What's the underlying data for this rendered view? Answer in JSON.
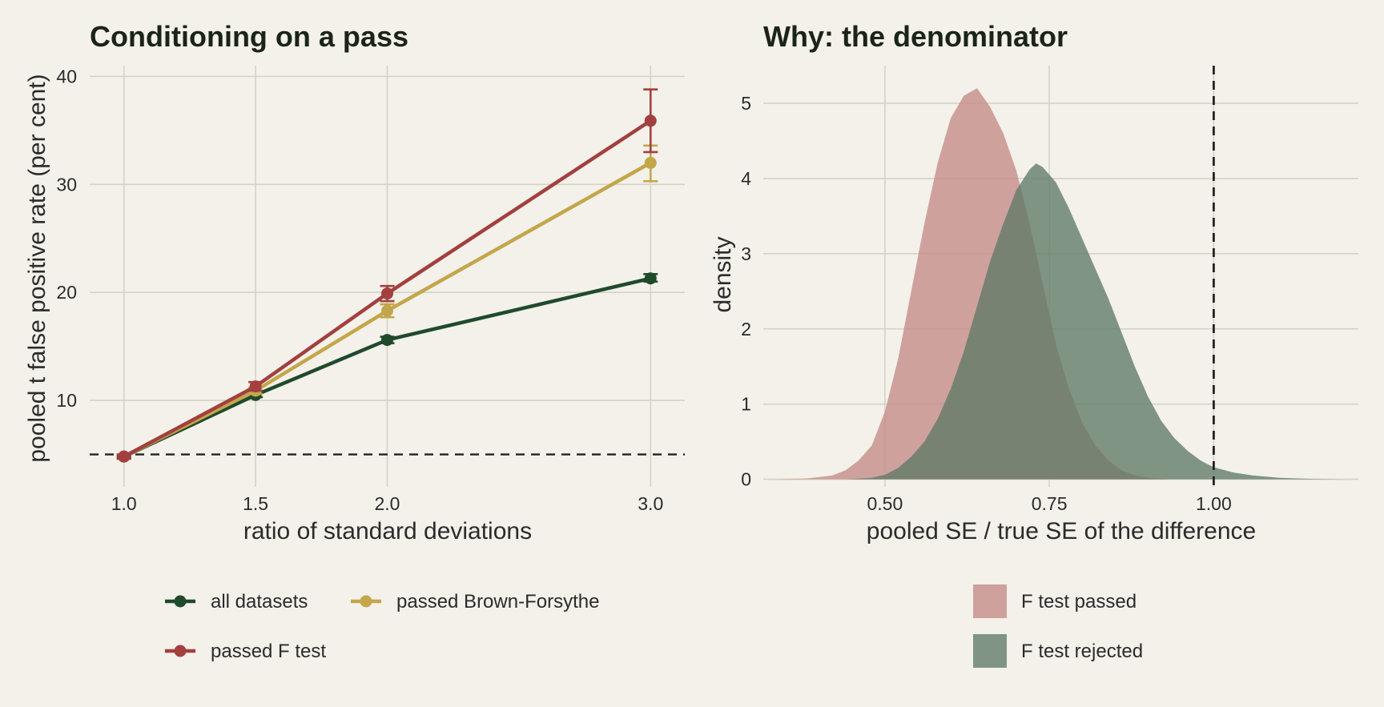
{
  "chart_data": [
    {
      "type": "line",
      "title": "Conditioning on a pass",
      "xlabel": "ratio of standard deviations",
      "ylabel": "pooled t false positive rate (per cent)",
      "x": [
        1.0,
        1.5,
        2.0,
        3.0
      ],
      "x_tick_labels": [
        "1.0",
        "1.5",
        "2.0",
        "3.0"
      ],
      "xlim": [
        0.87,
        3.13
      ],
      "y_ticks": [
        10,
        20,
        30,
        40
      ],
      "y_tick_labels": [
        "10",
        "20",
        "30",
        "40"
      ],
      "ylim": [
        2.0,
        41.0
      ],
      "reference_line": 5,
      "grid": true,
      "legend_position": "bottom",
      "series": [
        {
          "name": "all datasets",
          "color": "#1f4a2c",
          "values": [
            4.8,
            10.5,
            15.6,
            21.3
          ],
          "lower": [
            4.7,
            10.3,
            15.3,
            21.0
          ],
          "upper": [
            4.9,
            10.7,
            15.9,
            21.7
          ]
        },
        {
          "name": "passed F test",
          "color": "#a33f3f",
          "values": [
            4.8,
            11.3,
            19.9,
            35.9
          ],
          "lower": [
            4.6,
            10.9,
            19.2,
            33.0
          ],
          "upper": [
            5.0,
            11.7,
            20.6,
            38.8
          ]
        },
        {
          "name": "passed Brown-Forsythe",
          "color": "#c4a64a",
          "values": [
            4.8,
            10.9,
            18.3,
            32.0
          ],
          "lower": [
            4.6,
            10.6,
            17.7,
            30.3
          ],
          "upper": [
            5.0,
            11.2,
            18.9,
            33.6
          ]
        }
      ]
    },
    {
      "type": "area",
      "title": "Why: the denominator",
      "xlabel": "pooled SE / true SE of the difference",
      "ylabel": "density",
      "x_ticks": [
        0.5,
        0.75,
        1.0
      ],
      "x_tick_labels": [
        "0.50",
        "0.75",
        "1.00"
      ],
      "xlim": [
        0.315,
        1.22
      ],
      "y_ticks": [
        0,
        1,
        2,
        3,
        4,
        5
      ],
      "y_tick_labels": [
        "0",
        "1",
        "2",
        "3",
        "4",
        "5"
      ],
      "ylim": [
        -0.1,
        5.5
      ],
      "reference_line": 1.0,
      "grid": true,
      "legend_position": "bottom",
      "series": [
        {
          "name": "F test passed",
          "color": "#c48a87",
          "x": [
            0.33,
            0.38,
            0.42,
            0.44,
            0.46,
            0.48,
            0.5,
            0.52,
            0.54,
            0.56,
            0.58,
            0.6,
            0.62,
            0.64,
            0.66,
            0.68,
            0.7,
            0.72,
            0.74,
            0.76,
            0.78,
            0.8,
            0.82,
            0.84,
            0.86,
            0.88,
            0.9,
            0.93
          ],
          "values": [
            0.0,
            0.01,
            0.05,
            0.12,
            0.25,
            0.45,
            0.9,
            1.6,
            2.5,
            3.4,
            4.2,
            4.8,
            5.1,
            5.2,
            4.95,
            4.6,
            4.1,
            3.4,
            2.6,
            1.8,
            1.2,
            0.75,
            0.45,
            0.25,
            0.12,
            0.05,
            0.02,
            0.0
          ]
        },
        {
          "name": "F test rejected",
          "color": "#5f7a66",
          "x": [
            0.44,
            0.48,
            0.5,
            0.52,
            0.54,
            0.56,
            0.58,
            0.6,
            0.62,
            0.64,
            0.66,
            0.68,
            0.7,
            0.72,
            0.73,
            0.74,
            0.76,
            0.78,
            0.8,
            0.82,
            0.84,
            0.86,
            0.88,
            0.9,
            0.92,
            0.94,
            0.96,
            0.98,
            1.0,
            1.03,
            1.06,
            1.1,
            1.15,
            1.2
          ],
          "values": [
            0.0,
            0.02,
            0.06,
            0.15,
            0.3,
            0.5,
            0.8,
            1.2,
            1.7,
            2.3,
            2.9,
            3.4,
            3.85,
            4.12,
            4.2,
            4.15,
            3.95,
            3.6,
            3.2,
            2.8,
            2.4,
            1.95,
            1.5,
            1.1,
            0.78,
            0.55,
            0.38,
            0.25,
            0.16,
            0.09,
            0.05,
            0.02,
            0.005,
            0.0
          ]
        }
      ]
    }
  ]
}
